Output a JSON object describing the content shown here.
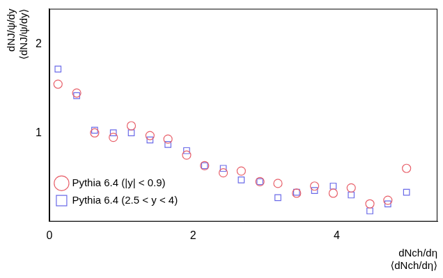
{
  "chart_data": {
    "type": "scatter",
    "xlabel": [
      "dNch/dη",
      "⟨dNch/dη⟩"
    ],
    "ylabel": [
      "dNJ/ψ/dy",
      "⟨dNJ/ψ/dy⟩"
    ],
    "x": [
      0.12,
      0.38,
      0.63,
      0.89,
      1.14,
      1.4,
      1.65,
      1.91,
      2.16,
      2.42,
      2.67,
      2.93,
      3.18,
      3.44,
      3.69,
      3.95,
      4.2,
      4.46,
      4.71,
      4.97
    ],
    "series": [
      {
        "name": "Pythia 6.4 (|y| < 0.9)",
        "color": "#e8606a",
        "marker": "circle",
        "values": [
          1.55,
          1.45,
          1.0,
          0.95,
          1.08,
          0.97,
          0.93,
          0.75,
          0.63,
          0.55,
          0.57,
          0.45,
          0.43,
          0.32,
          0.4,
          0.32,
          0.38,
          0.2,
          0.24,
          0.6
        ]
      },
      {
        "name": "Pythia 6.4 (2.5 < y < 4)",
        "color": "#6a6ae8",
        "marker": "square",
        "values": [
          1.72,
          1.42,
          1.03,
          1.0,
          1.0,
          0.92,
          0.87,
          0.8,
          0.63,
          0.6,
          0.47,
          0.45,
          0.27,
          0.33,
          0.35,
          0.4,
          0.3,
          0.12,
          0.2,
          0.33
        ]
      }
    ],
    "xlim": [
      0,
      5.4
    ],
    "xticks": [
      0,
      2,
      4
    ],
    "ylim": [
      0,
      2.4
    ],
    "yticks": [
      1,
      2
    ],
    "grid": false,
    "legend": "top-right"
  }
}
